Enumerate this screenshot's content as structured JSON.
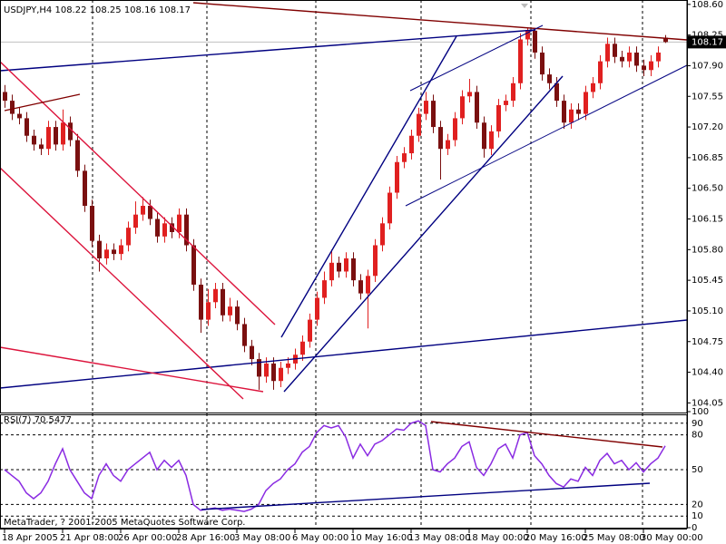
{
  "copyright": "MetaTrader, ? 2001-2005 MetaQuotes Software Corp.",
  "chart_data": [
    {
      "type": "candlestick",
      "title": "USDJPY,H4 108.22 108.25 108.16 108.17",
      "up_color": "#e02020",
      "down_color": "#7a1010",
      "categories": [
        "18 Apr 2005",
        null,
        null,
        null,
        null,
        null,
        null,
        null,
        "21 Apr 08:00",
        null,
        null,
        null,
        null,
        null,
        null,
        null,
        "26 Apr 00:00",
        null,
        null,
        null,
        null,
        null,
        null,
        null,
        "28 Apr 16:00",
        null,
        null,
        null,
        null,
        null,
        null,
        null,
        "3 May 08:00",
        null,
        null,
        null,
        null,
        null,
        null,
        null,
        "6 May 00:00",
        null,
        null,
        null,
        null,
        null,
        null,
        null,
        "10 May 16:00",
        null,
        null,
        null,
        null,
        null,
        null,
        null,
        "13 May 08:00",
        null,
        null,
        null,
        null,
        null,
        null,
        null,
        "18 May 00:00",
        null,
        null,
        null,
        null,
        null,
        null,
        null,
        "20 May 16:00",
        null,
        null,
        null,
        null,
        null,
        null,
        null,
        "25 May 08:00",
        null,
        null,
        null,
        null,
        null,
        null,
        null,
        "30 May 00:00",
        null,
        null,
        null
      ],
      "open": [
        107.6,
        107.5,
        107.35,
        107.3,
        107.1,
        107.0,
        106.95,
        107.2,
        107.0,
        107.25,
        107.05,
        106.7,
        106.3,
        105.9,
        105.7,
        105.8,
        105.75,
        105.85,
        106.05,
        106.2,
        106.3,
        106.15,
        105.95,
        106.1,
        106.0,
        106.2,
        105.85,
        105.4,
        105.0,
        105.2,
        105.35,
        105.05,
        105.15,
        104.95,
        104.7,
        104.55,
        104.35,
        104.5,
        104.3,
        104.45,
        104.5,
        104.6,
        104.75,
        105.0,
        105.25,
        105.45,
        105.65,
        105.55,
        105.7,
        105.45,
        105.3,
        105.5,
        105.85,
        106.1,
        106.45,
        106.8,
        106.9,
        107.1,
        107.35,
        107.5,
        107.2,
        106.95,
        107.05,
        107.3,
        107.55,
        107.6,
        107.25,
        106.95,
        107.15,
        107.45,
        107.5,
        107.7,
        108.2,
        108.3,
        108.05,
        107.8,
        107.7,
        107.5,
        107.25,
        107.4,
        107.35,
        107.6,
        107.7,
        107.95,
        108.15,
        108.0,
        107.95,
        108.05,
        107.9,
        107.85,
        107.95,
        108.22
      ],
      "high": [
        107.68,
        107.57,
        107.42,
        107.37,
        107.17,
        107.07,
        107.27,
        107.27,
        107.4,
        107.32,
        107.12,
        106.77,
        106.37,
        105.97,
        105.87,
        105.87,
        105.92,
        106.12,
        106.35,
        106.4,
        106.37,
        106.22,
        106.17,
        106.17,
        106.27,
        106.27,
        105.92,
        105.47,
        105.35,
        105.42,
        105.42,
        105.25,
        105.22,
        105.02,
        104.77,
        104.62,
        104.57,
        104.57,
        104.52,
        104.57,
        104.67,
        104.82,
        105.07,
        105.32,
        105.55,
        105.8,
        105.72,
        105.77,
        105.77,
        105.52,
        105.57,
        105.92,
        106.17,
        106.52,
        106.87,
        106.97,
        107.17,
        107.42,
        107.6,
        107.57,
        107.27,
        107.12,
        107.37,
        107.62,
        107.75,
        107.67,
        107.32,
        107.22,
        107.52,
        107.57,
        107.77,
        108.27,
        108.33,
        108.33,
        108.12,
        107.87,
        107.77,
        107.57,
        107.47,
        107.47,
        107.67,
        107.77,
        108.02,
        108.22,
        108.22,
        108.07,
        108.12,
        108.12,
        107.97,
        108.02,
        108.12,
        108.25
      ],
      "low": [
        107.42,
        107.28,
        107.23,
        107.03,
        106.93,
        106.88,
        106.88,
        106.93,
        106.93,
        106.98,
        106.63,
        106.23,
        105.83,
        105.55,
        105.63,
        105.68,
        105.68,
        105.78,
        105.98,
        106.13,
        106.08,
        105.88,
        105.88,
        105.93,
        105.93,
        105.78,
        105.33,
        104.85,
        104.93,
        105.13,
        104.98,
        104.98,
        104.88,
        104.63,
        104.48,
        104.2,
        104.28,
        104.2,
        104.23,
        104.38,
        104.43,
        104.53,
        104.68,
        104.93,
        105.18,
        105.38,
        105.48,
        105.48,
        105.38,
        105.23,
        104.9,
        105.43,
        105.78,
        106.03,
        106.38,
        106.73,
        106.83,
        107.03,
        107.28,
        107.13,
        106.6,
        106.88,
        106.98,
        107.23,
        107.48,
        107.18,
        106.85,
        106.88,
        107.08,
        107.38,
        107.43,
        107.63,
        108.13,
        107.98,
        107.73,
        107.63,
        107.43,
        107.18,
        107.18,
        107.28,
        107.28,
        107.53,
        107.63,
        107.88,
        107.93,
        107.88,
        107.88,
        107.83,
        107.78,
        107.78,
        107.88,
        108.16
      ],
      "close": [
        107.5,
        107.35,
        107.3,
        107.1,
        107.0,
        106.95,
        107.2,
        107.0,
        107.25,
        107.05,
        106.7,
        106.3,
        105.9,
        105.7,
        105.8,
        105.75,
        105.85,
        106.05,
        106.2,
        106.3,
        106.15,
        105.95,
        106.1,
        106.0,
        106.2,
        105.85,
        105.4,
        105.0,
        105.2,
        105.35,
        105.05,
        105.15,
        104.95,
        104.7,
        104.55,
        104.35,
        104.5,
        104.3,
        104.45,
        104.5,
        104.6,
        104.75,
        105.0,
        105.25,
        105.45,
        105.65,
        105.55,
        105.7,
        105.45,
        105.3,
        105.5,
        105.85,
        106.1,
        106.45,
        106.8,
        106.9,
        107.1,
        107.35,
        107.5,
        107.2,
        106.95,
        107.05,
        107.3,
        107.55,
        107.6,
        107.25,
        106.95,
        107.15,
        107.45,
        107.5,
        107.7,
        108.2,
        108.3,
        108.05,
        107.8,
        107.7,
        107.5,
        107.25,
        107.4,
        107.35,
        107.6,
        107.7,
        107.95,
        108.15,
        108.0,
        107.95,
        108.05,
        107.9,
        107.85,
        107.95,
        108.05,
        108.17
      ],
      "ylim": [
        103.94,
        108.65
      ],
      "yticks": [
        {
          "value": 108.6,
          "label": "108.60"
        },
        108.25,
        {
          "value": 107.9,
          "label": "107.90"
        },
        107.55,
        {
          "value": 107.2,
          "label": "107.20"
        },
        106.85,
        {
          "value": 106.5,
          "label": "106.50"
        },
        106.15,
        {
          "value": 105.8,
          "label": "105.80"
        },
        105.45,
        {
          "value": 105.1,
          "label": "105.10"
        },
        104.75,
        {
          "value": 104.4,
          "label": "104.40"
        },
        104.05
      ]
    },
    {
      "type": "line",
      "title": "RSI(7) 70.5477",
      "color": "#8a2be2",
      "values": [
        50,
        45,
        40,
        30,
        25,
        30,
        40,
        55,
        68,
        50,
        40,
        30,
        25,
        45,
        55,
        45,
        40,
        50,
        55,
        60,
        65,
        50,
        58,
        52,
        58,
        45,
        20,
        15,
        16,
        17,
        15,
        16,
        15,
        14,
        16,
        20,
        32,
        38,
        42,
        50,
        55,
        65,
        70,
        82,
        88,
        86,
        88,
        78,
        60,
        72,
        62,
        72,
        75,
        80,
        85,
        84,
        90,
        92,
        88,
        50,
        48,
        55,
        60,
        70,
        74,
        52,
        45,
        55,
        68,
        72,
        60,
        80,
        82,
        62,
        55,
        45,
        38,
        35,
        42,
        40,
        52,
        45,
        58,
        64,
        55,
        58,
        50,
        56,
        48,
        55,
        60,
        70.5477
      ],
      "ylim": [
        0,
        100
      ],
      "yticks": [
        100,
        90,
        80,
        50,
        20,
        10,
        0
      ]
    }
  ]
}
